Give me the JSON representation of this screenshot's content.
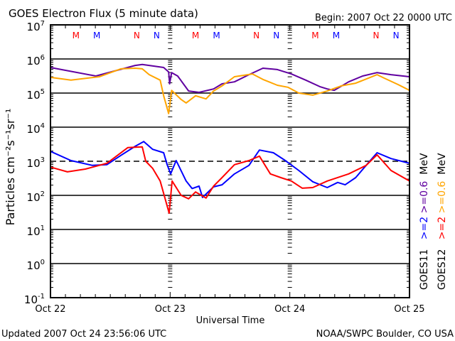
{
  "chart_data": {
    "type": "line",
    "title": "GOES Electron Flux (5 minute data)",
    "begin_label": "Begin: 2007 Oct 22 0000 UTC",
    "xlabel": "Universal Time",
    "ylabel": "Particles cm⁻²s⁻¹sr⁻¹",
    "y_scale": "log",
    "ylim_log10": [
      -1,
      7
    ],
    "y_ticks": [
      {
        "base": "10",
        "exp": "7"
      },
      {
        "base": "10",
        "exp": "6"
      },
      {
        "base": "10",
        "exp": "5"
      },
      {
        "base": "10",
        "exp": "4"
      },
      {
        "base": "10",
        "exp": "3"
      },
      {
        "base": "10",
        "exp": "2"
      },
      {
        "base": "10",
        "exp": "1"
      },
      {
        "base": "10",
        "exp": "0"
      },
      {
        "base": "10",
        "exp": "-1"
      }
    ],
    "xlim_hours": [
      0,
      72
    ],
    "x_ticks": [
      {
        "hour": 0,
        "label": "Oct 22"
      },
      {
        "hour": 24,
        "label": "Oct 23"
      },
      {
        "hour": 48,
        "label": "Oct 24"
      },
      {
        "hour": 72,
        "label": "Oct 25"
      }
    ],
    "threshold_log10": 3,
    "grid": true,
    "markers": [
      {
        "label": "M",
        "color": "#ff0000",
        "hours": [
          5.1,
          29.1,
          53.1
        ]
      },
      {
        "label": "M",
        "color": "#0000ff",
        "hours": [
          9.3,
          33.3,
          57.3
        ]
      },
      {
        "label": "N",
        "color": "#ff0000",
        "hours": [
          17.3,
          41.3,
          65.3
        ]
      },
      {
        "label": "N",
        "color": "#0000ff",
        "hours": [
          21.3,
          45.3,
          69.3
        ]
      }
    ],
    "series": [
      {
        "name": "GOES11 >=0.6 MeV",
        "satellite": "GOES11",
        "energy": ">=0.6",
        "unit": "MeV",
        "color": "#6000a0",
        "hours": [
          0,
          9.1,
          17.0,
          18.4,
          22.7,
          23.7,
          23.9,
          24.3,
          25.5,
          27.7,
          29.8,
          32.7,
          34.4,
          36.9,
          39.8,
          42.6,
          45.5,
          48.3,
          51.2,
          54.0,
          55.5,
          56.9,
          59.8,
          62.6,
          65.5,
          68.3,
          72
        ],
        "y_log10": [
          5.75,
          5.5,
          5.81,
          5.84,
          5.75,
          5.62,
          5.27,
          5.6,
          5.5,
          5.06,
          5.02,
          5.12,
          5.27,
          5.33,
          5.54,
          5.73,
          5.69,
          5.56,
          5.38,
          5.19,
          5.12,
          5.08,
          5.33,
          5.5,
          5.6,
          5.54,
          5.48
        ]
      },
      {
        "name": "GOES12 >=0.6 MeV",
        "satellite": "GOES12",
        "energy": ">=0.6",
        "unit": "MeV",
        "color": "#ffa500",
        "hours": [
          0,
          4.1,
          9.8,
          14.1,
          17.0,
          18.4,
          19.8,
          22.0,
          22.7,
          23.7,
          24.3,
          26.2,
          27.2,
          29.1,
          31.2,
          32.7,
          34.4,
          36.9,
          40.5,
          42.6,
          45.5,
          47.6,
          49.8,
          52.6,
          55.5,
          58.3,
          61.2,
          65.5,
          66.9,
          69.7,
          72
        ],
        "y_log10": [
          5.46,
          5.38,
          5.48,
          5.71,
          5.73,
          5.71,
          5.54,
          5.38,
          4.92,
          4.4,
          5.08,
          4.81,
          4.71,
          4.92,
          4.83,
          5.06,
          5.21,
          5.48,
          5.56,
          5.4,
          5.23,
          5.17,
          5.0,
          4.94,
          5.06,
          5.21,
          5.29,
          5.54,
          5.44,
          5.25,
          5.08
        ]
      },
      {
        "name": "GOES11 >=2 MeV",
        "satellite": "GOES11",
        "energy": ">=2",
        "unit": "MeV",
        "color": "#0000ff",
        "hours": [
          0,
          4.1,
          8.4,
          11.3,
          14.1,
          17.0,
          18.7,
          20.5,
          22.7,
          23.4,
          24.1,
          25.2,
          27.2,
          28.4,
          29.8,
          30.5,
          32.7,
          34.4,
          36.9,
          39.8,
          41.9,
          44.7,
          46.9,
          49.8,
          52.6,
          55.5,
          57.6,
          59.1,
          61.2,
          63.3,
          65.5,
          68.3,
          72
        ],
        "y_log10": [
          3.29,
          3.02,
          2.88,
          2.9,
          3.17,
          3.44,
          3.58,
          3.35,
          3.25,
          2.9,
          2.63,
          3.02,
          2.42,
          2.2,
          2.27,
          1.94,
          2.25,
          2.31,
          2.63,
          2.88,
          3.33,
          3.25,
          3.04,
          2.73,
          2.4,
          2.23,
          2.38,
          2.31,
          2.52,
          2.88,
          3.25,
          3.08,
          2.94
        ]
      },
      {
        "name": "GOES12 >=2 MeV",
        "satellite": "GOES12",
        "energy": ">=2",
        "unit": "MeV",
        "color": "#ff0000",
        "hours": [
          0,
          3.4,
          7.0,
          11.3,
          15.5,
          18.4,
          19.1,
          20.5,
          22.0,
          23.0,
          23.8,
          24.4,
          26.2,
          27.7,
          29.1,
          31.2,
          32.7,
          34.4,
          36.9,
          39.8,
          41.9,
          44.1,
          46.2,
          48.3,
          50.5,
          52.6,
          55.5,
          59.8,
          63.3,
          65.5,
          68.3,
          72
        ],
        "y_log10": [
          2.83,
          2.69,
          2.77,
          2.94,
          3.4,
          3.42,
          3.0,
          2.79,
          2.42,
          1.9,
          1.48,
          2.42,
          2.0,
          1.9,
          2.1,
          1.92,
          2.27,
          2.52,
          2.9,
          3.02,
          3.15,
          2.63,
          2.52,
          2.42,
          2.21,
          2.23,
          2.42,
          2.63,
          2.88,
          3.19,
          2.73,
          2.42
        ]
      }
    ],
    "right_legend": [
      {
        "sat": "GOES11",
        "e1": ">=2",
        "c1": "#0000ff",
        "e2": ">=0.6",
        "c2": "#6000a0",
        "unit": "MeV"
      },
      {
        "sat": "GOES12",
        "e1": ">=2",
        "c1": "#ff0000",
        "e2": ">=0.6",
        "c2": "#ffa500",
        "unit": "MeV"
      }
    ]
  },
  "footer": {
    "updated": "Updated 2007 Oct 24 23:56:06 UTC",
    "source": "NOAA/SWPC Boulder, CO USA"
  }
}
